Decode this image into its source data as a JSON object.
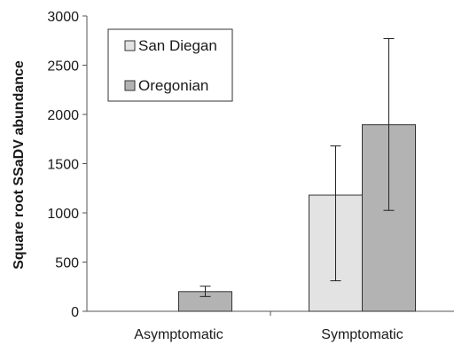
{
  "chart_data": {
    "type": "bar",
    "ylabel": "Square root SSaDV abundance",
    "xlabel": "",
    "ylim": [
      0,
      3000
    ],
    "yticks": [
      0,
      500,
      1000,
      1500,
      2000,
      2500,
      3000
    ],
    "categories": [
      "Asymptomatic",
      "Symptomatic"
    ],
    "series": [
      {
        "name": "San Diegan",
        "color": "#e3e3e3",
        "values": [
          0,
          1180
        ],
        "error_low": [
          0,
          310
        ],
        "error_high": [
          0,
          1680
        ]
      },
      {
        "name": "Oregonian",
        "color": "#b3b3b3",
        "values": [
          200,
          1895
        ],
        "error_low": [
          150,
          1025
        ],
        "error_high": [
          255,
          2770
        ]
      }
    ],
    "legend_position": "top-left",
    "grid": false
  }
}
